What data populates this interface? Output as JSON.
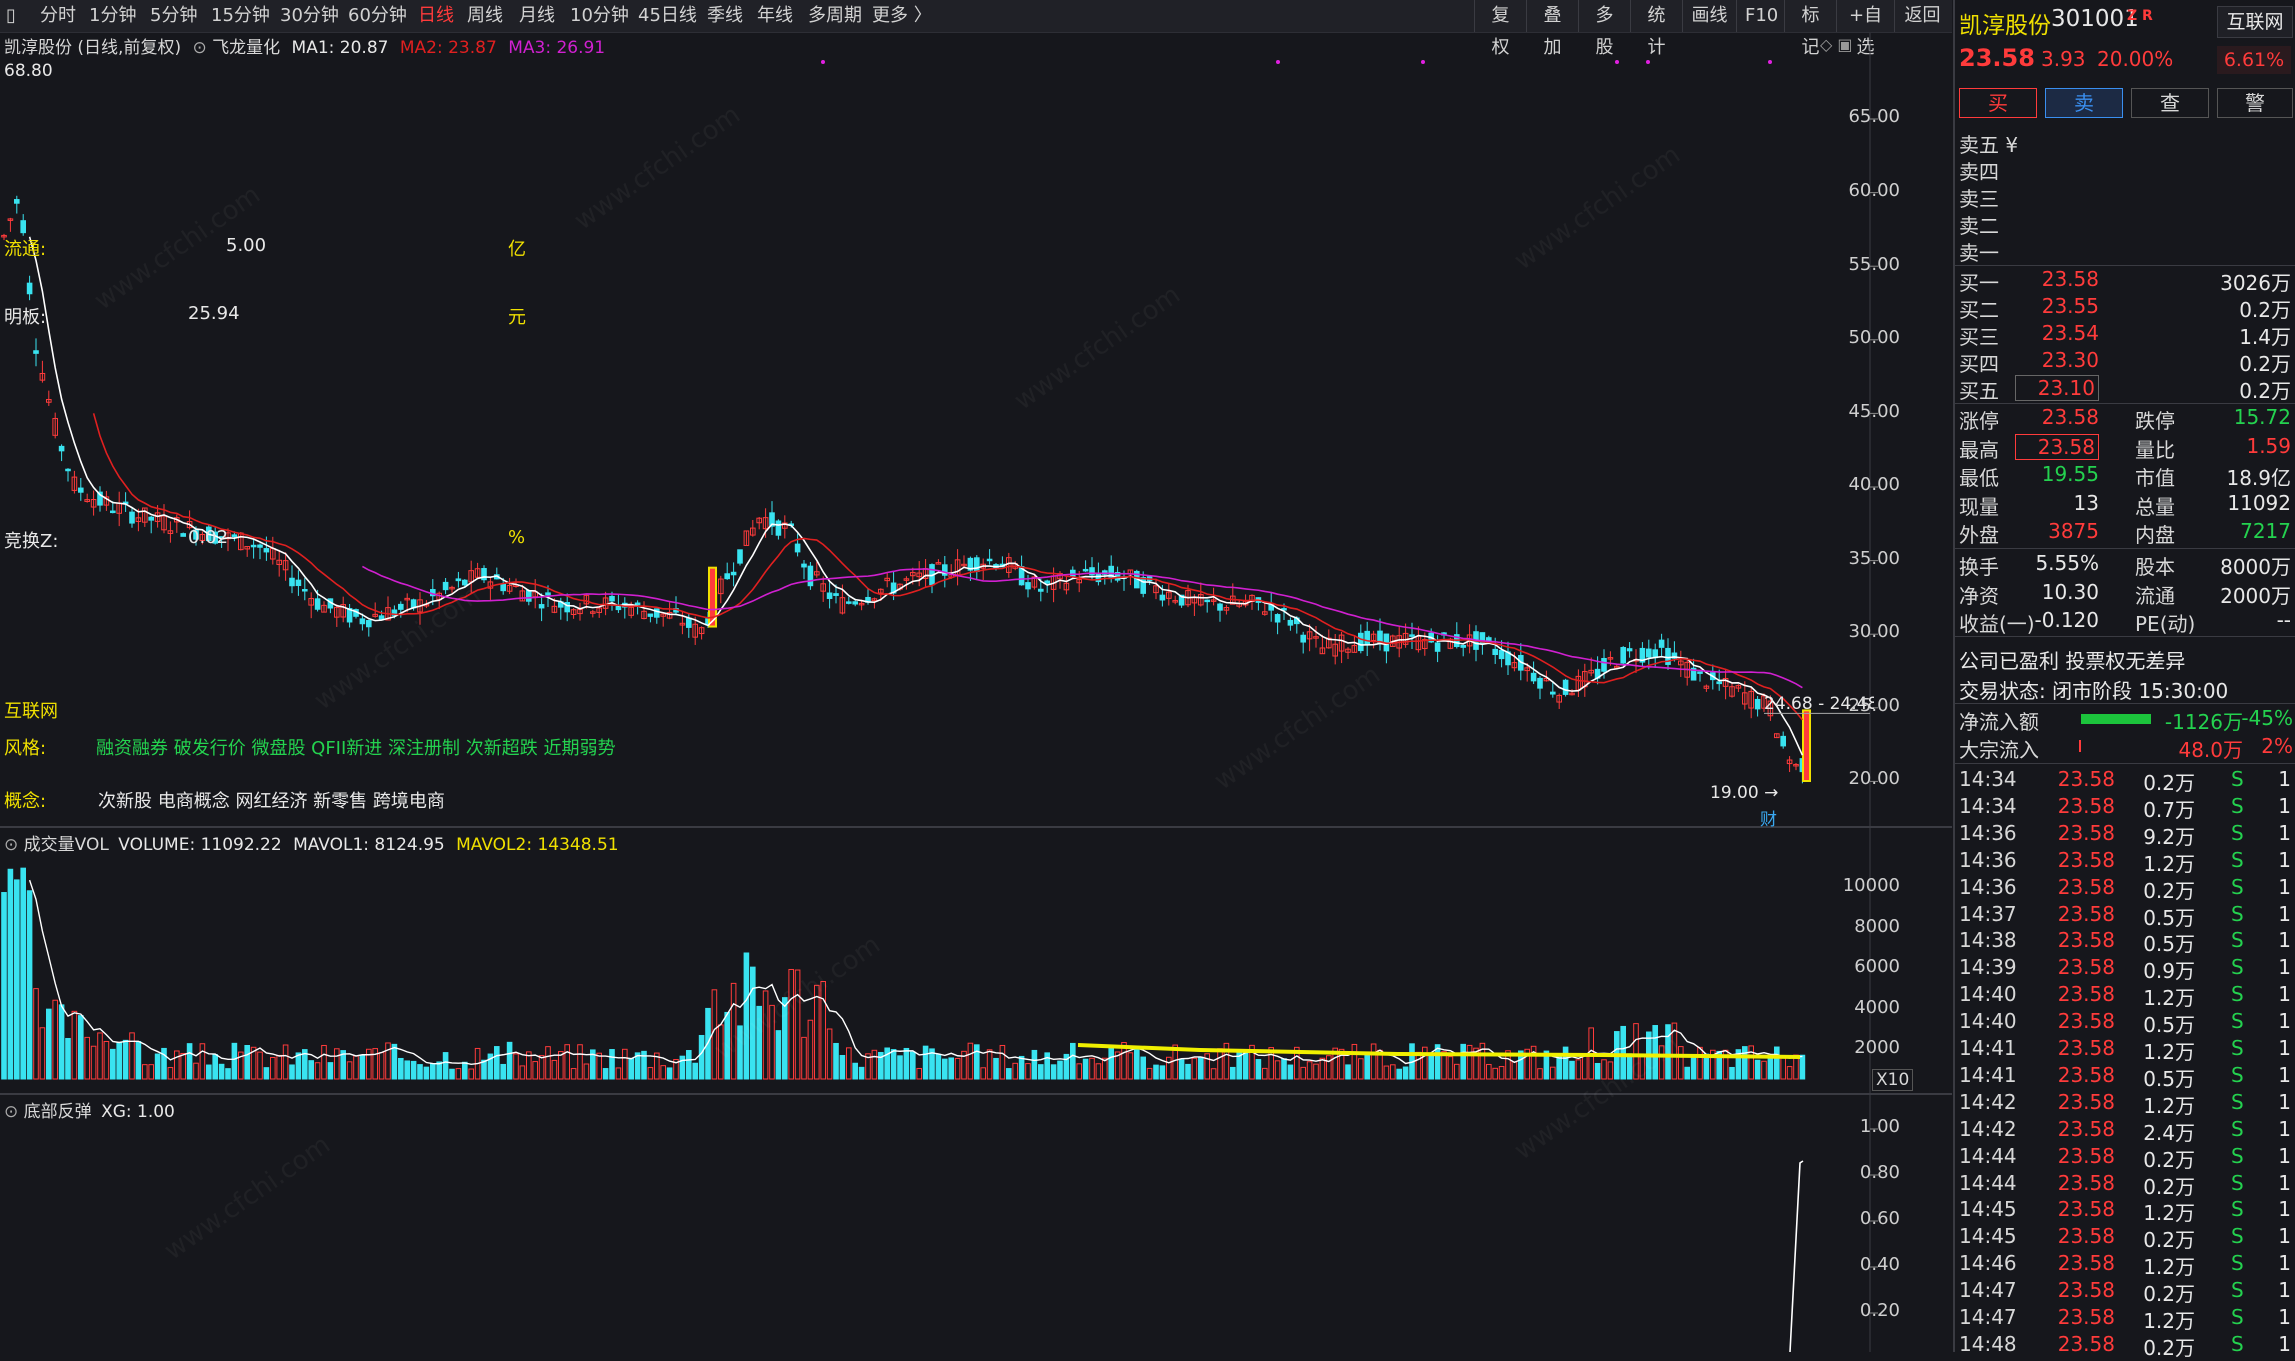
{
  "toolbar": {
    "periods": [
      "分时",
      "1分钟",
      "5分钟",
      "15分钟",
      "30分钟",
      "60分钟",
      "日线",
      "周线",
      "月线",
      "10分钟",
      "45日线",
      "季线",
      "年线",
      "多周期",
      "更多 〉"
    ],
    "active_period": "日线",
    "right_buttons": [
      "复权",
      "叠加",
      "多股",
      "统计",
      "画线",
      "F10",
      "标记",
      "+自选",
      "返回"
    ]
  },
  "chart_header": {
    "stock_title": "凯淳股份 (日线,前复权)",
    "indicator_name": "飞龙量化",
    "ma1": "MA1: 20.87",
    "ma2": "MA2: 23.87",
    "ma3": "MA3: 26.91",
    "high_mark": "68.80",
    "low_mark": "19.00 →",
    "price_line_label": "24.68 - 24.48",
    "event_label": "财"
  },
  "overlay_text": {
    "liutong_label": "流通:",
    "liutong_value": "5.00",
    "liutong_unit": "亿",
    "mingban_label": "明板:",
    "mingban_value": "25.94",
    "mingban_unit": "元",
    "jinghuan_label": "竞换Z:",
    "jinghuan_value": "0.02",
    "jinghuan_unit": "%",
    "industry": "互联网",
    "style_label": "风格:",
    "style_value": "融资融券 破发行价 微盘股 QFII新进 深注册制 次新超跌 近期弱势",
    "concept_label": "概念:",
    "concept_value": "次新股 电商概念 网红经济 新零售 跨境电商",
    "watermark": "www.cfchi.com"
  },
  "y_axis_main": [
    "65.00",
    "60.00",
    "55.00",
    "50.00",
    "45.00",
    "40.00",
    "35.00",
    "30.00",
    "25.00",
    "20.00"
  ],
  "volume_panel": {
    "title": "成交量VOL",
    "volume": "VOLUME: 11092.22",
    "mavol1": "MAVOL1: 8124.95",
    "mavol2": "MAVOL2: 14348.51",
    "y_axis": [
      "10000",
      "8000",
      "6000",
      "4000",
      "2000"
    ],
    "unit_tag": "X10"
  },
  "xg_panel": {
    "title": "底部反弹",
    "xg": "XG: 1.00",
    "y_axis": [
      "1.00",
      "0.80",
      "0.60",
      "0.40",
      "0.20"
    ]
  },
  "quote": {
    "name": "凯淳股份",
    "code": "301001",
    "tag": "Z R",
    "sector_button": "互联网",
    "sector_change": "6.61%",
    "price": "23.58",
    "change": "3.93",
    "change_pct": "20.00%",
    "buttons": [
      "买",
      "卖",
      "查",
      "警"
    ],
    "sell_levels": [
      "卖五 ¥",
      "卖四",
      "卖三",
      "卖二",
      "卖一"
    ],
    "buy_levels": [
      {
        "label": "买一",
        "price": "23.58",
        "vol": "3026万"
      },
      {
        "label": "买二",
        "price": "23.55",
        "vol": "0.2万"
      },
      {
        "label": "买三",
        "price": "23.54",
        "vol": "1.4万"
      },
      {
        "label": "买四",
        "price": "23.30",
        "vol": "0.2万"
      },
      {
        "label": "买五",
        "price": "23.10",
        "vol": "0.2万"
      }
    ],
    "stats": [
      {
        "l1": "涨停",
        "v1": "23.58",
        "c1": "red",
        "l2": "跌停",
        "v2": "15.72",
        "c2": "green"
      },
      {
        "l1": "最高",
        "v1": "23.58",
        "c1": "red",
        "l2": "量比",
        "v2": "1.59",
        "c2": "red"
      },
      {
        "l1": "最低",
        "v1": "19.55",
        "c1": "green",
        "l2": "市值",
        "v2": "18.9亿",
        "c2": "white"
      },
      {
        "l1": "现量",
        "v1": "13",
        "c1": "white",
        "l2": "总量",
        "v2": "11092",
        "c2": "white"
      },
      {
        "l1": "外盘",
        "v1": "3875",
        "c1": "red",
        "l2": "内盘",
        "v2": "7217",
        "c2": "green"
      }
    ],
    "stats2": [
      {
        "l1": "换手",
        "v1": "5.55%",
        "l2": "股本",
        "v2": "8000万"
      },
      {
        "l1": "净资",
        "v1": "10.30",
        "l2": "流通",
        "v2": "2000万"
      },
      {
        "l1": "收益(一)",
        "v1": "-0.120",
        "l2": "PE(动)",
        "v2": "--"
      }
    ],
    "company_status": "公司已盈利 投票权无差异",
    "trade_status": "交易状态: 闭市阶段 15:30:00",
    "net_inflow_label": "净流入额",
    "net_inflow_value": "-1126万",
    "net_inflow_pct": "-45%",
    "block_label": "大宗流入",
    "block_value": "48.0万",
    "block_pct": "2%"
  },
  "ticks": [
    {
      "t": "14:34",
      "p": "23.58",
      "v": "0.2万",
      "s": "S",
      "n": "1"
    },
    {
      "t": "14:34",
      "p": "23.58",
      "v": "0.7万",
      "s": "S",
      "n": "1"
    },
    {
      "t": "14:36",
      "p": "23.58",
      "v": "9.2万",
      "s": "S",
      "n": "1"
    },
    {
      "t": "14:36",
      "p": "23.58",
      "v": "1.2万",
      "s": "S",
      "n": "1"
    },
    {
      "t": "14:36",
      "p": "23.58",
      "v": "0.2万",
      "s": "S",
      "n": "1"
    },
    {
      "t": "14:37",
      "p": "23.58",
      "v": "0.5万",
      "s": "S",
      "n": "1"
    },
    {
      "t": "14:38",
      "p": "23.58",
      "v": "0.5万",
      "s": "S",
      "n": "1"
    },
    {
      "t": "14:39",
      "p": "23.58",
      "v": "0.9万",
      "s": "S",
      "n": "1"
    },
    {
      "t": "14:40",
      "p": "23.58",
      "v": "1.2万",
      "s": "S",
      "n": "1"
    },
    {
      "t": "14:40",
      "p": "23.58",
      "v": "0.5万",
      "s": "S",
      "n": "1"
    },
    {
      "t": "14:41",
      "p": "23.58",
      "v": "1.2万",
      "s": "S",
      "n": "1"
    },
    {
      "t": "14:41",
      "p": "23.58",
      "v": "0.5万",
      "s": "S",
      "n": "1"
    },
    {
      "t": "14:42",
      "p": "23.58",
      "v": "1.2万",
      "s": "S",
      "n": "1"
    },
    {
      "t": "14:42",
      "p": "23.58",
      "v": "2.4万",
      "s": "S",
      "n": "1"
    },
    {
      "t": "14:44",
      "p": "23.58",
      "v": "0.2万",
      "s": "S",
      "n": "1"
    },
    {
      "t": "14:44",
      "p": "23.58",
      "v": "0.2万",
      "s": "S",
      "n": "1"
    },
    {
      "t": "14:45",
      "p": "23.58",
      "v": "1.2万",
      "s": "S",
      "n": "1"
    },
    {
      "t": "14:45",
      "p": "23.58",
      "v": "0.2万",
      "s": "S",
      "n": "1"
    },
    {
      "t": "14:46",
      "p": "23.58",
      "v": "1.2万",
      "s": "S",
      "n": "1"
    },
    {
      "t": "14:47",
      "p": "23.58",
      "v": "0.2万",
      "s": "S",
      "n": "1"
    },
    {
      "t": "14:47",
      "p": "23.58",
      "v": "1.2万",
      "s": "S",
      "n": "1"
    },
    {
      "t": "14:48",
      "p": "23.58",
      "v": "0.2万",
      "s": "S",
      "n": "1"
    }
  ],
  "colors": {
    "up": "#ff3b3b",
    "down": "#39e3f0",
    "ma1": "#ffffff",
    "ma2": "#e02020",
    "ma3": "#d020d0",
    "yellow": "#f0f000",
    "magenta": "#e020e0"
  }
}
